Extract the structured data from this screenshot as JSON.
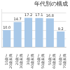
{
  "chart_data": {
    "type": "bar",
    "title": "年代別の構成",
    "categories": [
      "10歳〜\n20歳未満",
      "20歳〜\n30歳未満",
      "30歳〜\n40歳未満",
      "40歳〜\n50歳未満",
      "50歳〜\n60歳未満",
      "60歳〜\n70歳未満"
    ],
    "values": [
      10.0,
      14.7,
      17.2,
      17.1,
      16.8,
      9.2
    ],
    "value_labels": [
      "10.0",
      "14.7",
      "17.2",
      "17.1",
      "16.8",
      "9.2"
    ],
    "data_labels": true,
    "color": "#a8c8e8",
    "ylim": [
      0,
      22
    ],
    "yticks": [
      0,
      5,
      10,
      15,
      20
    ],
    "grid": true,
    "tick_labels": "x"
  }
}
